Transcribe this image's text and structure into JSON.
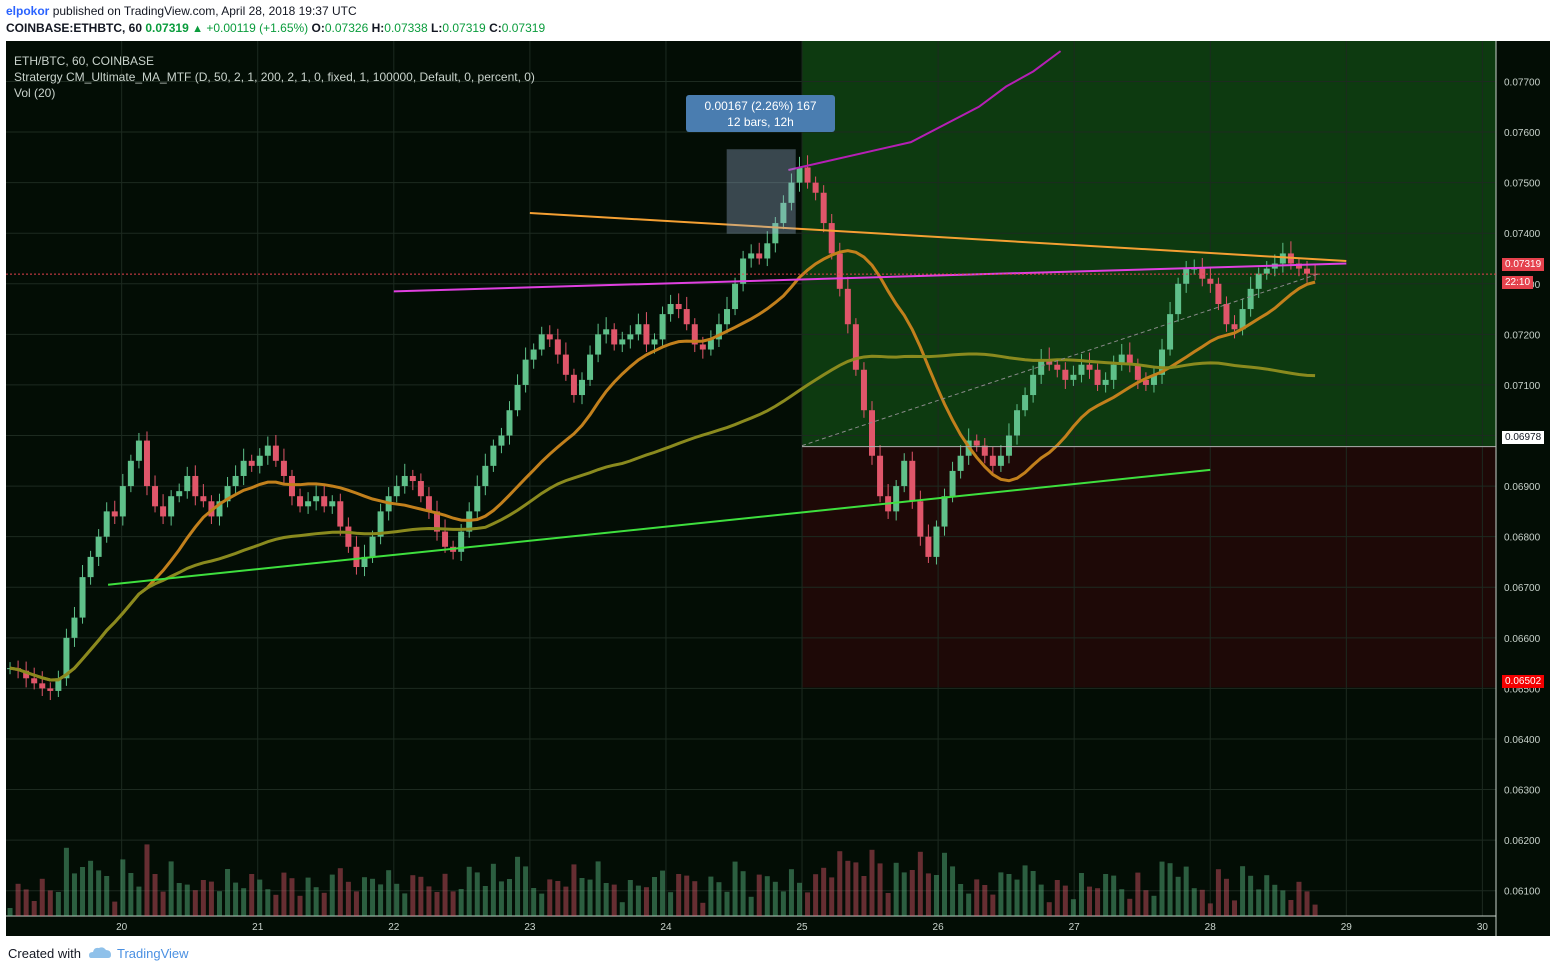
{
  "header": {
    "username": "elpokor",
    "published_text": "published on TradingView.com, April 28, 2018 19:37 UTC",
    "symbol": "COINBASE:ETHBTC, 60",
    "last": "0.07319",
    "change": "+0.00119 (+1.65%)",
    "o_label": "O:",
    "o": "0.07326",
    "h_label": "H:",
    "h": "0.07338",
    "l_label": "L:",
    "l": "0.07319",
    "c_label": "C:",
    "c": "0.07319"
  },
  "legend": {
    "pair": "ETH/BTC, 60, COINBASE",
    "strategy": "Stratergy CM_Ultimate_MA_MTF (D, 50, 2, 1, 200, 2, 1, 0, fixed, 1, 100000, Default, 0, percent, 0)",
    "volume": "Vol (20)"
  },
  "measure": {
    "line1": "0.00167 (2.26%) 167",
    "line2": "12 bars, 12h"
  },
  "price_labels": {
    "current": "0.07319",
    "countdown": "22:10",
    "stop_top": "0.06978",
    "stop_bottom": "0.06502"
  },
  "footer": {
    "created": "Created with",
    "brand": "TradingView"
  },
  "colors": {
    "background": "#030d05",
    "bull": "#5fc08a",
    "bear": "#e0566a",
    "ma50": "#c2801c",
    "ma200": "#8a8a1e",
    "resistance": "#f5a033",
    "magenta": "#e040e0",
    "support": "#3ee03e",
    "profit_zone": "#0d3a10",
    "loss_zone": "#1e0907"
  },
  "chart_data": {
    "type": "candlestick",
    "ylim": [
      0.0605,
      0.0778
    ],
    "xlim": [
      19.15,
      30.1
    ],
    "y_ticks": [
      "0.06100",
      "0.06200",
      "0.06300",
      "0.06400",
      "0.06500",
      "0.06600",
      "0.06700",
      "0.06800",
      "0.06900",
      "0.07000",
      "0.07100",
      "0.07200",
      "0.07300",
      "0.07400",
      "0.07500",
      "0.07600",
      "0.07700"
    ],
    "x_ticks": [
      "20",
      "21",
      "22",
      "23",
      "24",
      "25",
      "26",
      "27",
      "28",
      "29",
      "30"
    ],
    "ohlc_series": "hourly candles ETH/BTC Apr 19 - Apr 28, 2018",
    "closes": [
      0.0654,
      0.06535,
      0.0652,
      0.0651,
      0.065,
      0.06495,
      0.0652,
      0.066,
      0.0664,
      0.0672,
      0.0676,
      0.068,
      0.0685,
      0.0684,
      0.069,
      0.0695,
      0.0699,
      0.069,
      0.0686,
      0.0684,
      0.0688,
      0.0689,
      0.0692,
      0.0688,
      0.0687,
      0.0684,
      0.0687,
      0.069,
      0.0692,
      0.0695,
      0.0694,
      0.0696,
      0.0698,
      0.0695,
      0.0692,
      0.0688,
      0.0686,
      0.0687,
      0.0688,
      0.0686,
      0.0687,
      0.0682,
      0.0678,
      0.0674,
      0.0676,
      0.068,
      0.0685,
      0.0688,
      0.069,
      0.0692,
      0.0691,
      0.0688,
      0.0685,
      0.0681,
      0.0678,
      0.0677,
      0.0681,
      0.0685,
      0.069,
      0.0694,
      0.0698,
      0.07,
      0.0705,
      0.071,
      0.0715,
      0.0717,
      0.072,
      0.0719,
      0.0716,
      0.0712,
      0.0708,
      0.0711,
      0.0716,
      0.072,
      0.0721,
      0.0718,
      0.0719,
      0.072,
      0.0722,
      0.0718,
      0.0719,
      0.0724,
      0.0726,
      0.0725,
      0.0722,
      0.0718,
      0.0717,
      0.0719,
      0.0722,
      0.0725,
      0.073,
      0.0735,
      0.0736,
      0.0735,
      0.0738,
      0.0742,
      0.0746,
      0.075,
      0.0753,
      0.075,
      0.0748,
      0.0742,
      0.0736,
      0.0729,
      0.0722,
      0.0713,
      0.0705,
      0.0696,
      0.0688,
      0.0685,
      0.069,
      0.0695,
      0.0687,
      0.068,
      0.0676,
      0.0682,
      0.0688,
      0.0693,
      0.0696,
      0.0699,
      0.0698,
      0.0696,
      0.0694,
      0.0696,
      0.07,
      0.0705,
      0.0708,
      0.0712,
      0.0715,
      0.0714,
      0.0713,
      0.0711,
      0.0712,
      0.0714,
      0.0713,
      0.071,
      0.0711,
      0.0714,
      0.0716,
      0.0714,
      0.0711,
      0.071,
      0.0712,
      0.0717,
      0.0724,
      0.073,
      0.0733,
      0.0733,
      0.0731,
      0.073,
      0.0726,
      0.0722,
      0.0721,
      0.0725,
      0.0729,
      0.0732,
      0.0733,
      0.0734,
      0.0736,
      0.0734,
      0.0733,
      0.0732,
      0.07319
    ]
  }
}
